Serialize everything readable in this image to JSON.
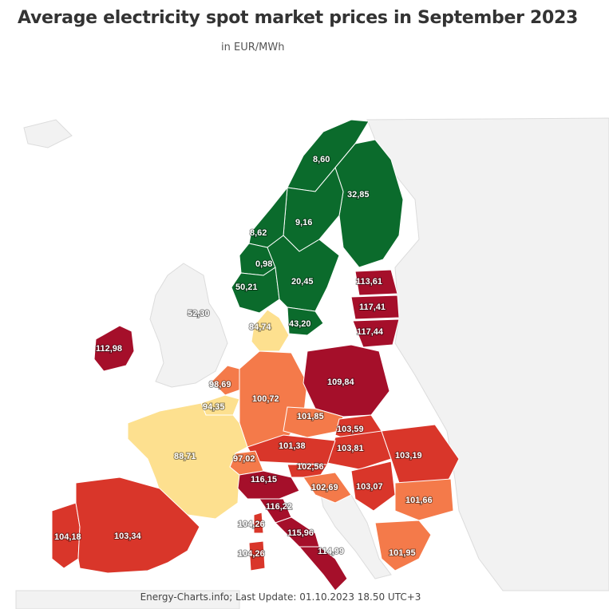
{
  "title": "Average electricity spot market prices in September 2023",
  "subtitle": "in EUR/MWh",
  "footer": "Energy-Charts.info; Last Update: 01.10.2023 18.50 UTC+3",
  "colors": {
    "background": "#ffffff",
    "no_data": "#f2f2f2",
    "green": "#0b6b2c",
    "pale_yellow": "#fde08f",
    "orange": "#f47a4a",
    "red": "#d9362a",
    "dark_red": "#a50f2a"
  },
  "regions": [
    {
      "name": "Norway north",
      "value": "8,60"
    },
    {
      "name": "Finland",
      "value": "32,85"
    },
    {
      "name": "Sweden north",
      "value": "9,16"
    },
    {
      "name": "Norway middle",
      "value": "8,62"
    },
    {
      "name": "Norway west",
      "value": "0,98"
    },
    {
      "name": "Norway south",
      "value": "50,21"
    },
    {
      "name": "Sweden south",
      "value": "20,45"
    },
    {
      "name": "Sweden southern tip",
      "value": "43,20"
    },
    {
      "name": "Estonia",
      "value": "113,61"
    },
    {
      "name": "Latvia",
      "value": "117,41"
    },
    {
      "name": "Lithuania",
      "value": "117,44"
    },
    {
      "name": "Great Britain",
      "value": "52,30"
    },
    {
      "name": "Denmark",
      "value": "84,74"
    },
    {
      "name": "Ireland",
      "value": "112,98"
    },
    {
      "name": "Netherlands",
      "value": "98,69"
    },
    {
      "name": "Belgium",
      "value": "94,35"
    },
    {
      "name": "Germany",
      "value": "100,72"
    },
    {
      "name": "Poland",
      "value": "109,84"
    },
    {
      "name": "Czechia",
      "value": "101,85"
    },
    {
      "name": "Slovakia",
      "value": "103,59"
    },
    {
      "name": "Hungary",
      "value": "103,81"
    },
    {
      "name": "Austria",
      "value": "101,38"
    },
    {
      "name": "Romania",
      "value": "103,19"
    },
    {
      "name": "France",
      "value": "88,71"
    },
    {
      "name": "Switzerland",
      "value": "97,02"
    },
    {
      "name": "Slovenia",
      "value": "102,56"
    },
    {
      "name": "Italy north",
      "value": "116,15"
    },
    {
      "name": "Croatia",
      "value": "102,69"
    },
    {
      "name": "Serbia",
      "value": "103,07"
    },
    {
      "name": "Bulgaria",
      "value": "101,66"
    },
    {
      "name": "Italy centre-north",
      "value": "116,22"
    },
    {
      "name": "Corsica",
      "value": "104,26"
    },
    {
      "name": "Italy centre-south",
      "value": "115,96"
    },
    {
      "name": "Sardinia",
      "value": "104,26"
    },
    {
      "name": "Italy south",
      "value": "114,99"
    },
    {
      "name": "Portugal",
      "value": "104,18"
    },
    {
      "name": "Spain",
      "value": "103,34"
    },
    {
      "name": "Greece",
      "value": "101,95"
    }
  ]
}
